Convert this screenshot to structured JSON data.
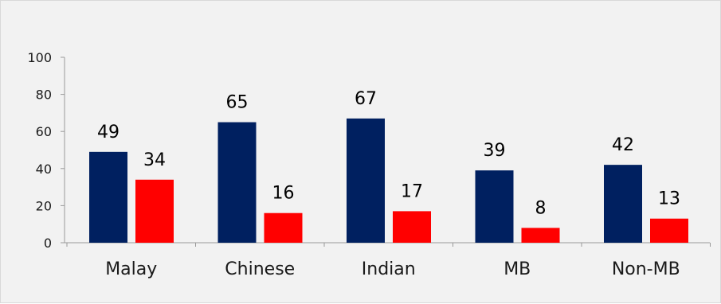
{
  "chart_data": {
    "type": "bar",
    "title": "",
    "xlabel": "",
    "ylabel": "",
    "categories": [
      "Malay",
      "Chinese",
      "Indian",
      "MB",
      "Non-MB"
    ],
    "series": [
      {
        "values": [
          49,
          65,
          67,
          39,
          42
        ],
        "color": "#002060"
      },
      {
        "values": [
          34,
          16,
          17,
          8,
          13
        ],
        "color": "#ff0000"
      }
    ],
    "ylim": [
      0,
      100
    ],
    "yticks": [
      0,
      20,
      40,
      60,
      80,
      100
    ],
    "grid": false,
    "legend": "none",
    "data_labels": true
  }
}
